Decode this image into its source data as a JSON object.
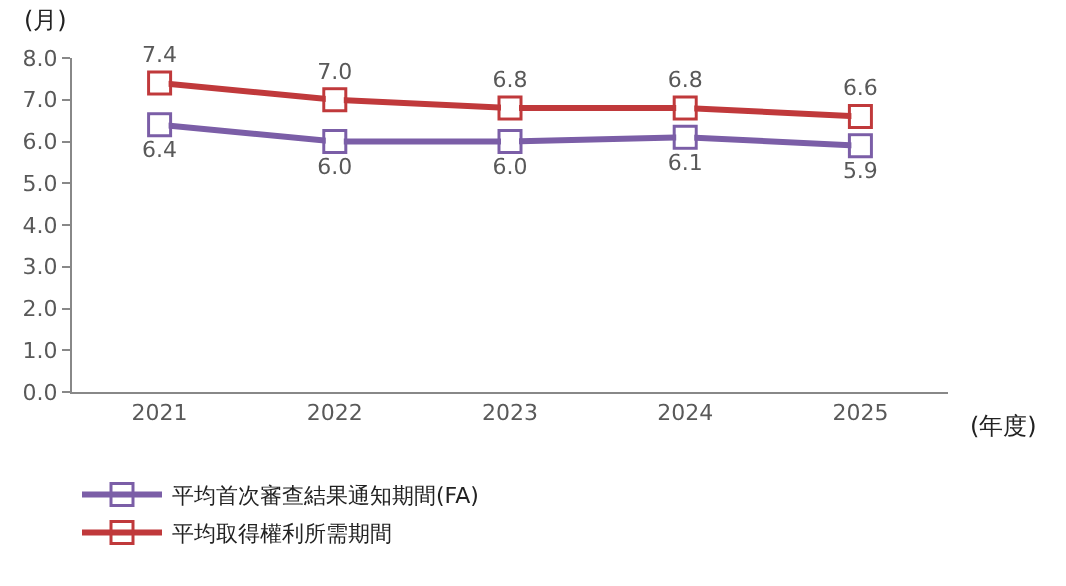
{
  "chart_data": {
    "type": "line",
    "xlabel": "(年度)",
    "ylabel": "(月)",
    "categories": [
      "2021",
      "2022",
      "2023",
      "2024",
      "2025"
    ],
    "series": [
      {
        "name": "平均首次審查結果通知期間(FA)",
        "color": "#7b5ea7",
        "values": [
          6.4,
          6.0,
          6.0,
          6.1,
          5.9
        ],
        "value_labels": [
          "6.4",
          "6.0",
          "6.0",
          "6.1",
          "5.9"
        ]
      },
      {
        "name": "平均取得權利所需期間",
        "color": "#c0393b",
        "values": [
          7.4,
          7.0,
          6.8,
          6.8,
          6.6
        ],
        "value_labels": [
          "7.4",
          "7.0",
          "6.8",
          "6.8",
          "6.6"
        ]
      }
    ],
    "ylim": [
      0,
      8
    ],
    "yticks": [
      {
        "value": 0,
        "label": "0.0"
      },
      {
        "value": 1,
        "label": "1.0"
      },
      {
        "value": 2,
        "label": "2.0"
      },
      {
        "value": 3,
        "label": "3.0"
      },
      {
        "value": 4,
        "label": "4.0"
      },
      {
        "value": 5,
        "label": "5.0"
      },
      {
        "value": 6,
        "label": "6.0"
      },
      {
        "value": 7,
        "label": "7.0"
      },
      {
        "value": 8,
        "label": "8.0"
      }
    ],
    "legend": "bottom",
    "marker": "square",
    "line_style": "solid"
  }
}
